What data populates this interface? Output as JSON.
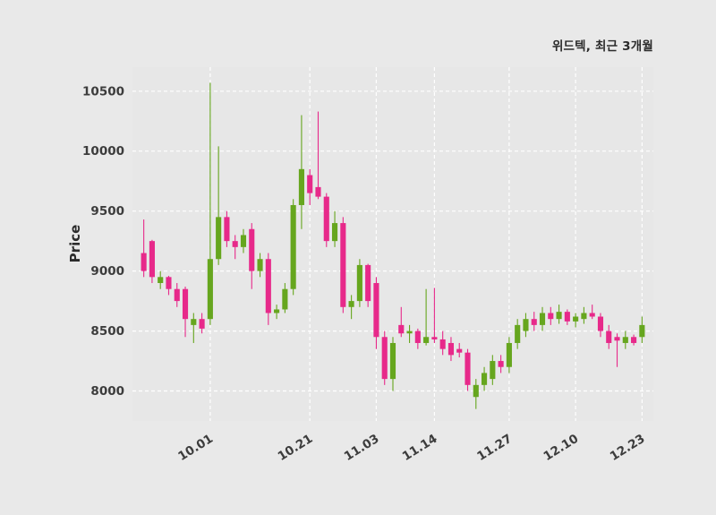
{
  "chart_data": {
    "type": "candlestick",
    "title": "위드텍, 최근 3개월",
    "ylabel": "Price",
    "xlabel": "",
    "ylim": [
      7750,
      10700
    ],
    "yticks": [
      8000,
      8500,
      9000,
      9500,
      10000,
      10500
    ],
    "xticks": [
      {
        "index": 8,
        "label": "10.01"
      },
      {
        "index": 20,
        "label": "10.21"
      },
      {
        "index": 28,
        "label": "11.03"
      },
      {
        "index": 35,
        "label": "11.14"
      },
      {
        "index": 44,
        "label": "11.27"
      },
      {
        "index": 52,
        "label": "12.10"
      },
      {
        "index": 60,
        "label": "12.23"
      }
    ],
    "grid": "dashed-major",
    "legend": "none",
    "colors": {
      "up": "#66A61E",
      "down": "#E7298A",
      "panel_bg": "#e7e7e7",
      "figure_bg": "#e9e9e9",
      "grid": "#ffffff",
      "text": "#3c3c3c"
    },
    "candle_fields": [
      "open",
      "high",
      "low",
      "close"
    ],
    "candles": [
      [
        9150,
        9430,
        8950,
        9000
      ],
      [
        9250,
        9260,
        8900,
        8950
      ],
      [
        8900,
        9000,
        8850,
        8950
      ],
      [
        8950,
        8960,
        8800,
        8850
      ],
      [
        8850,
        8900,
        8700,
        8750
      ],
      [
        8850,
        8870,
        8450,
        8600
      ],
      [
        8550,
        8650,
        8400,
        8600
      ],
      [
        8600,
        8650,
        8480,
        8520
      ],
      [
        8600,
        10570,
        8550,
        9100
      ],
      [
        9100,
        10040,
        9050,
        9450
      ],
      [
        9450,
        9500,
        9200,
        9250
      ],
      [
        9250,
        9300,
        9100,
        9200
      ],
      [
        9200,
        9350,
        9150,
        9300
      ],
      [
        9350,
        9400,
        8850,
        9000
      ],
      [
        9000,
        9150,
        8950,
        9100
      ],
      [
        9100,
        9150,
        8550,
        8650
      ],
      [
        8650,
        8720,
        8600,
        8680
      ],
      [
        8680,
        8900,
        8650,
        8850
      ],
      [
        8850,
        9600,
        8800,
        9550
      ],
      [
        9550,
        10300,
        9350,
        9850
      ],
      [
        9800,
        9850,
        9550,
        9650
      ],
      [
        9700,
        10330,
        9600,
        9620
      ],
      [
        9620,
        9650,
        9200,
        9250
      ],
      [
        9250,
        9500,
        9200,
        9400
      ],
      [
        9400,
        9450,
        8650,
        8700
      ],
      [
        8700,
        8800,
        8600,
        8750
      ],
      [
        8750,
        9100,
        8700,
        9050
      ],
      [
        9050,
        9060,
        8700,
        8750
      ],
      [
        8900,
        8950,
        8350,
        8450
      ],
      [
        8450,
        8500,
        8050,
        8100
      ],
      [
        8100,
        8450,
        8000,
        8400
      ],
      [
        8550,
        8700,
        8450,
        8480
      ],
      [
        8480,
        8550,
        8400,
        8500
      ],
      [
        8500,
        8520,
        8350,
        8400
      ],
      [
        8400,
        8850,
        8380,
        8450
      ],
      [
        8450,
        8860,
        8400,
        8430
      ],
      [
        8430,
        8500,
        8300,
        8350
      ],
      [
        8400,
        8450,
        8250,
        8300
      ],
      [
        8350,
        8400,
        8280,
        8320
      ],
      [
        8320,
        8350,
        8000,
        8050
      ],
      [
        7950,
        8100,
        7850,
        8050
      ],
      [
        8050,
        8200,
        8000,
        8150
      ],
      [
        8100,
        8300,
        8050,
        8250
      ],
      [
        8250,
        8300,
        8150,
        8200
      ],
      [
        8200,
        8450,
        8150,
        8400
      ],
      [
        8400,
        8600,
        8350,
        8550
      ],
      [
        8500,
        8650,
        8450,
        8600
      ],
      [
        8600,
        8660,
        8500,
        8550
      ],
      [
        8550,
        8700,
        8500,
        8650
      ],
      [
        8650,
        8700,
        8550,
        8600
      ],
      [
        8600,
        8720,
        8560,
        8660
      ],
      [
        8660,
        8680,
        8550,
        8580
      ],
      [
        8580,
        8650,
        8530,
        8620
      ],
      [
        8600,
        8700,
        8560,
        8650
      ],
      [
        8650,
        8720,
        8600,
        8620
      ],
      [
        8620,
        8650,
        8450,
        8500
      ],
      [
        8500,
        8550,
        8350,
        8400
      ],
      [
        8450,
        8480,
        8200,
        8420
      ],
      [
        8400,
        8500,
        8350,
        8450
      ],
      [
        8450,
        8470,
        8380,
        8400
      ],
      [
        8450,
        8620,
        8400,
        8550
      ]
    ]
  }
}
